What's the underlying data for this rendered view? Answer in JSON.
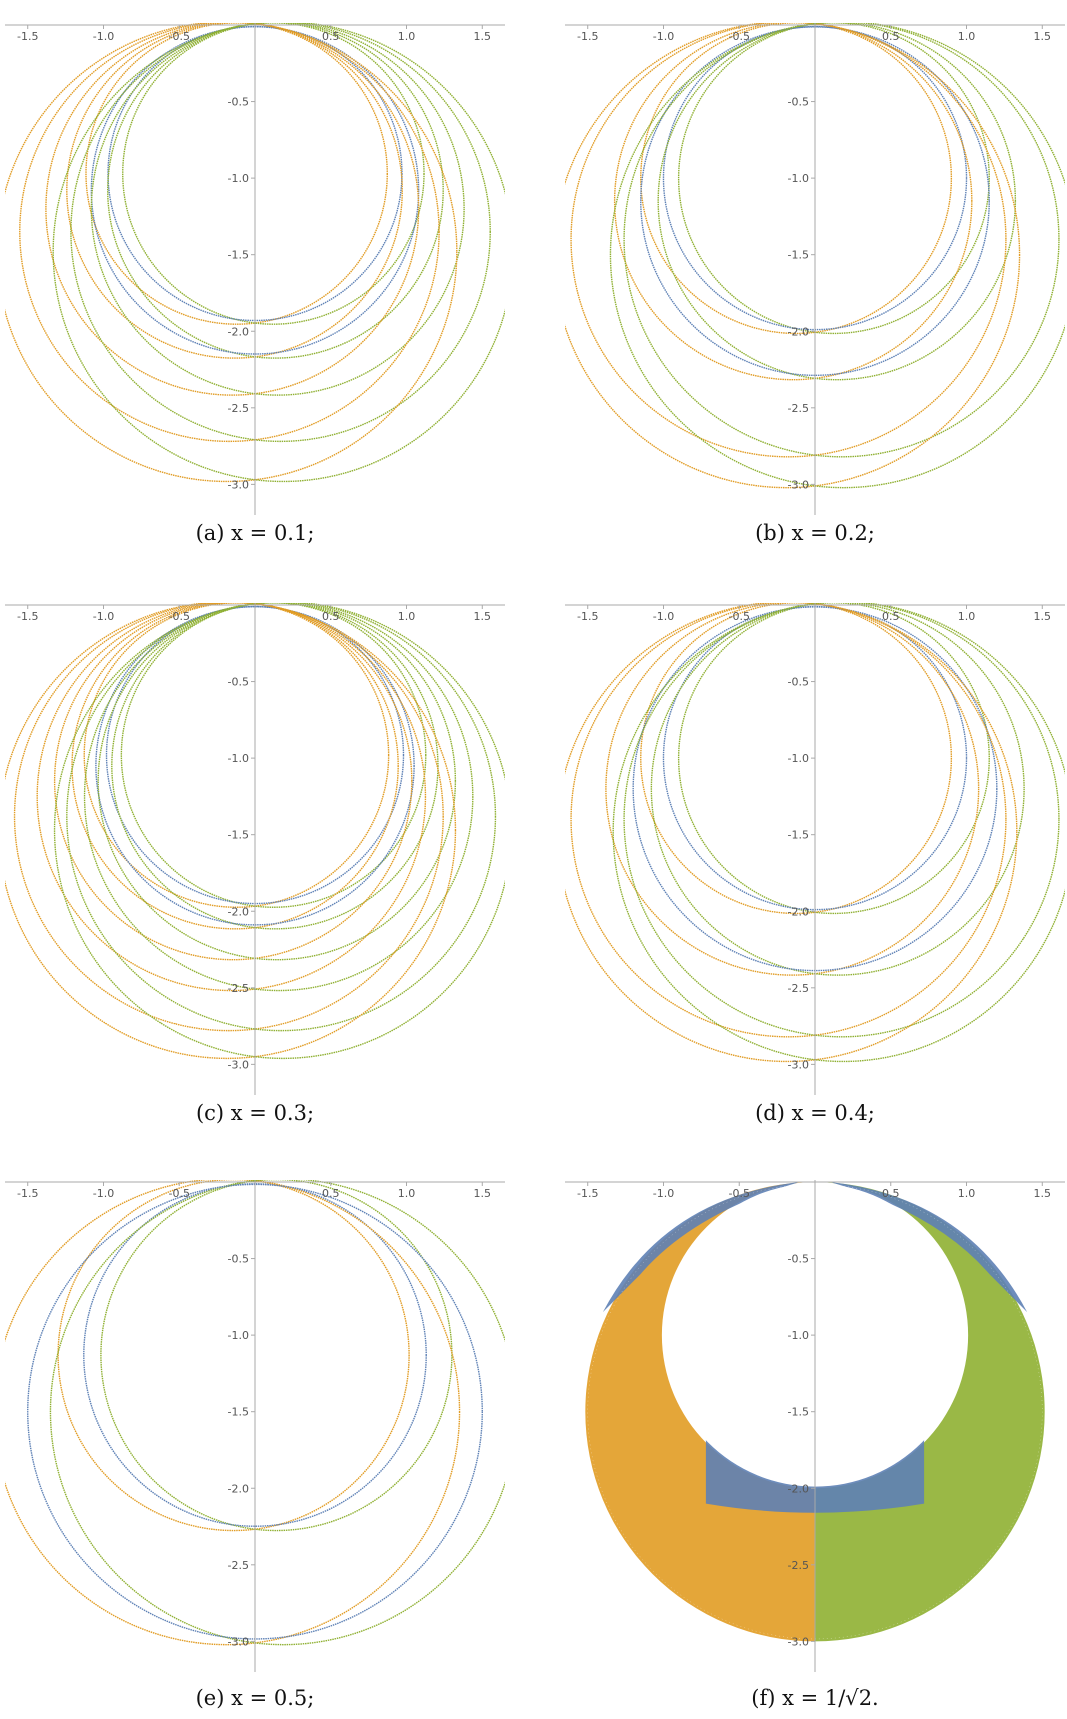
{
  "colors": {
    "blue": "#5e81b5",
    "orange": "#e19c24",
    "green": "#8fb032",
    "axis": "#a9a9a9"
  },
  "chart_data": [
    {
      "type": "scatter",
      "caption": "(a) x = 0.1;",
      "xticks": [
        -1.5,
        -1.0,
        -0.5,
        0.5,
        1.0,
        1.5
      ],
      "yticks": [
        -0.5,
        -1.0,
        -1.5,
        -2.0,
        -2.5,
        -3.0
      ],
      "xlim": [
        -1.65,
        1.65
      ],
      "ylim": [
        -3.2,
        0.0
      ],
      "radii": [
        0.97,
        1.08,
        1.2,
        1.35,
        1.48
      ],
      "fill": false
    },
    {
      "type": "scatter",
      "caption": "(b) x = 0.2;",
      "xticks": [
        -1.5,
        -1.0,
        -0.5,
        0.5,
        1.0,
        1.5
      ],
      "yticks": [
        -0.5,
        -1.0,
        -1.5,
        -2.0,
        -2.5,
        -3.0
      ],
      "xlim": [
        -1.65,
        1.65
      ],
      "ylim": [
        -3.2,
        0.0
      ],
      "radii": [
        1.0,
        1.15,
        1.4,
        1.5
      ],
      "fill": false
    },
    {
      "type": "scatter",
      "caption": "(c) x = 0.3;",
      "xticks": [
        -1.5,
        -1.0,
        -0.5,
        0.5,
        1.0,
        1.5
      ],
      "yticks": [
        -0.5,
        -1.0,
        -1.5,
        -2.0,
        -2.5,
        -3.0
      ],
      "xlim": [
        -1.65,
        1.65
      ],
      "ylim": [
        -3.2,
        0.0
      ],
      "radii": [
        0.98,
        1.05,
        1.15,
        1.25,
        1.38,
        1.47
      ],
      "fill": false
    },
    {
      "type": "scatter",
      "caption": "(d) x = 0.4;",
      "xticks": [
        -1.5,
        -1.0,
        -0.5,
        0.5,
        1.0,
        1.5
      ],
      "yticks": [
        -0.5,
        -1.0,
        -1.5,
        -2.0,
        -2.5,
        -3.0
      ],
      "xlim": [
        -1.65,
        1.65
      ],
      "ylim": [
        -3.2,
        0.0
      ],
      "radii": [
        1.0,
        1.2,
        1.4,
        1.48
      ],
      "fill": false
    },
    {
      "type": "scatter",
      "caption": "(e) x = 0.5;",
      "xticks": [
        -1.5,
        -1.0,
        -0.5,
        0.5,
        1.0,
        1.5
      ],
      "yticks": [
        -0.5,
        -1.0,
        -1.5,
        -2.0,
        -2.5,
        -3.0
      ],
      "xlim": [
        -1.65,
        1.65
      ],
      "ylim": [
        -3.2,
        0.0
      ],
      "radii": [
        1.13,
        1.5
      ],
      "fill": false
    },
    {
      "type": "scatter",
      "caption": "(f) x = 1/√2.",
      "xticks": [
        -1.5,
        -1.0,
        -0.5,
        0.5,
        1.0,
        1.5
      ],
      "yticks": [
        -0.5,
        -1.0,
        -1.5,
        -2.0,
        -2.5,
        -3.0
      ],
      "xlim": [
        -1.65,
        1.65
      ],
      "ylim": [
        -3.2,
        0.0
      ],
      "radii": [
        1.0,
        1.5
      ],
      "fill": true
    }
  ]
}
